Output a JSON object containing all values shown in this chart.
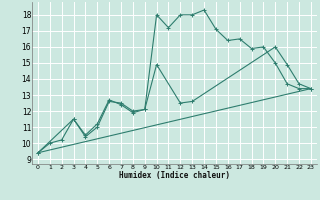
{
  "xlabel": "Humidex (Indice chaleur)",
  "bg_color": "#cce8e0",
  "grid_color": "#ffffff",
  "line_color": "#2e7d6e",
  "xlim": [
    -0.5,
    23.5
  ],
  "ylim": [
    8.7,
    18.8
  ],
  "xticks": [
    0,
    1,
    2,
    3,
    4,
    5,
    6,
    7,
    8,
    9,
    10,
    11,
    12,
    13,
    14,
    15,
    16,
    17,
    18,
    19,
    20,
    21,
    22,
    23
  ],
  "yticks": [
    9,
    10,
    11,
    12,
    13,
    14,
    15,
    16,
    17,
    18
  ],
  "line1_x": [
    0,
    1,
    2,
    3,
    4,
    5,
    6,
    7,
    8,
    9,
    10,
    11,
    12,
    13,
    14,
    15,
    16,
    17,
    18,
    19,
    20,
    21,
    22,
    23
  ],
  "line1_y": [
    9.4,
    10.0,
    10.2,
    11.5,
    10.4,
    11.0,
    12.6,
    12.5,
    12.0,
    12.1,
    18.0,
    17.2,
    18.0,
    18.0,
    18.3,
    17.1,
    16.4,
    16.5,
    15.9,
    16.0,
    15.0,
    13.7,
    13.4,
    13.4
  ],
  "line2_x": [
    0,
    3,
    4,
    5,
    6,
    7,
    8,
    9,
    10,
    12,
    13,
    20,
    21,
    22,
    23
  ],
  "line2_y": [
    9.4,
    11.5,
    10.5,
    11.2,
    12.7,
    12.4,
    11.9,
    12.1,
    14.9,
    12.5,
    12.6,
    16.0,
    14.9,
    13.7,
    13.4
  ],
  "line3_x": [
    0,
    23
  ],
  "line3_y": [
    9.4,
    13.4
  ]
}
